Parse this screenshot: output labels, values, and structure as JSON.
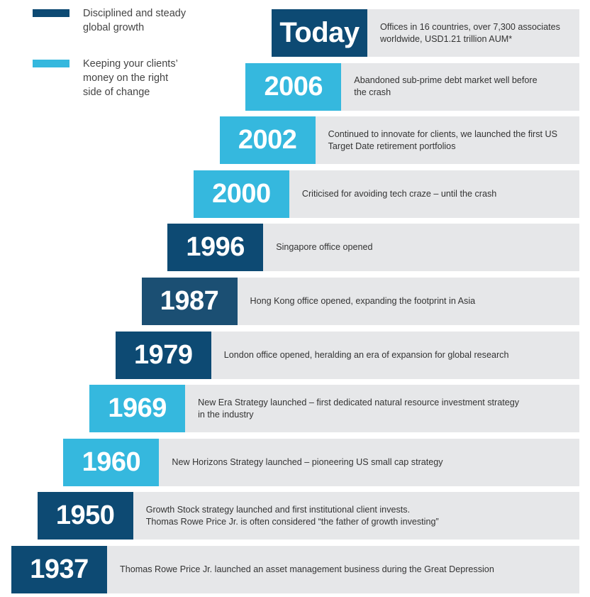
{
  "legend": [
    {
      "color": "#0d4a73",
      "text": [
        "Disciplined and steady",
        "global growth"
      ]
    },
    {
      "color": "#35b8de",
      "text": [
        "Keeping your clients’",
        "money on the right",
        "side of change"
      ]
    }
  ],
  "entries": [
    {
      "year": "Today",
      "color": "#0d4a73",
      "text": [
        "Offices in 16 countries, over 7,300 associates",
        "worldwide, USD1.21 trillion AUM*"
      ]
    },
    {
      "year": "2006",
      "color": "#35b8de",
      "text": [
        "Abandoned sub-prime debt market well before",
        "the crash"
      ]
    },
    {
      "year": "2002",
      "color": "#35b8de",
      "text": [
        "Continued to innovate for clients, we launched the first US",
        "Target Date retirement portfolios"
      ]
    },
    {
      "year": "2000",
      "color": "#35b8de",
      "text": [
        "Criticised for avoiding tech craze – until the crash"
      ]
    },
    {
      "year": "1996",
      "color": "#0d4a73",
      "text": [
        "Singapore office opened"
      ]
    },
    {
      "year": "1987",
      "color": "#1b4f73",
      "text": [
        "Hong Kong office opened, expanding the footprint in Asia"
      ]
    },
    {
      "year": "1979",
      "color": "#0d4a73",
      "text": [
        "London office opened, heralding an era of expansion for global research"
      ]
    },
    {
      "year": "1969",
      "color": "#35b8de",
      "text": [
        "New Era Strategy launched – first dedicated natural resource investment strategy",
        "in the industry"
      ]
    },
    {
      "year": "1960",
      "color": "#35b8de",
      "text": [
        "New Horizons Strategy launched – pioneering US small cap strategy"
      ]
    },
    {
      "year": "1950",
      "color": "#0d4a73",
      "text": [
        "Growth Stock strategy launched and first institutional client invests.",
        "Thomas Rowe Price Jr. is often considered “the father of growth investing”"
      ]
    },
    {
      "year": "1937",
      "color": "#0d4a73",
      "text": [
        "Thomas Rowe Price Jr. launched an asset management business during the Great Depression"
      ]
    }
  ]
}
